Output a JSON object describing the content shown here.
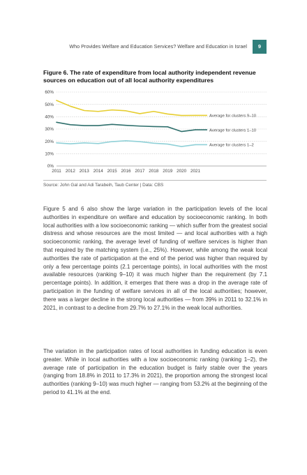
{
  "header": {
    "running_head": "Who Provides Welfare and Education Services? Welfare and Education in Israel",
    "page_number": "9",
    "badge_color": "#2f7f7b"
  },
  "figure": {
    "title": "Figure 6. The rate of expenditure from local authority independent revenue sources on education out of all local authority expenditures",
    "source": "Source: John Gal and Adi Tarabeih, Taub Center | Data: CBS"
  },
  "chart_data": {
    "type": "line",
    "title": "Figure 6. The rate of expenditure from local authority independent revenue sources on education out of all local authority expenditures",
    "xlabel": "",
    "ylabel": "",
    "x": [
      "2011",
      "2012",
      "2013",
      "2014",
      "2015",
      "2016",
      "2017",
      "2018",
      "2019",
      "2020",
      "2021"
    ],
    "ylim": [
      0,
      60
    ],
    "yticks": [
      "0%",
      "10%",
      "20%",
      "30%",
      "40%",
      "50%",
      "60%"
    ],
    "grid": "horizontal dotted",
    "legend_placement": "right, end of lines",
    "series": [
      {
        "name": "Average for clusters 9–10",
        "color": "#e6cd2e",
        "values": [
          53.2,
          48.5,
          45.0,
          44.3,
          45.5,
          44.8,
          42.5,
          44.3,
          42.2,
          41.0,
          41.1
        ]
      },
      {
        "name": "Average for clusters 1–10",
        "color": "#2e6f6c",
        "values": [
          35.5,
          33.5,
          32.8,
          32.8,
          33.8,
          33.0,
          32.4,
          32.0,
          31.8,
          28.0,
          29.4
        ]
      },
      {
        "name": "Average for clusters 1–2",
        "color": "#8fd0d7",
        "values": [
          18.8,
          18.0,
          18.8,
          18.2,
          19.8,
          20.5,
          19.8,
          18.5,
          17.8,
          15.8,
          17.3
        ]
      }
    ]
  },
  "body": {
    "para1": "Figure 5 and 6 also show the large variation in the participation levels of the local authorities in expenditure on welfare and education by socioeconomic ranking. In both local authorities with a low socioeconomic ranking — which suffer from the greatest social distress and whose resources are the most limited — and local authorities with a high socioeconomic ranking, the average level of funding of welfare services is higher than that required by the matching system (i.e., 25%). However, while among the weak local authorities the rate of participation at the end of the period was higher than required by only a few percentage points (2.1 percentage points), in local authorities with the most available resources (ranking 9–10) it was much higher than the requirement (by 7.1 percentage points). In addition, it emerges that there was a drop in the average rate of participation in the funding of welfare services in all of the local authorities; however, there was a larger decline in the strong local authorities — from 39% in 2011 to 32.1% in 2021, in contrast to a decline from 29.7% to 27.1% in the weak local authorities.",
    "para2": "The variation in the participation rates of local authorities in funding education is even greater. While in local authorities with a low socioeconomic ranking (ranking 1–2), the average rate of participation in the education budget is fairly stable over the years (ranging from 18.8% in 2011 to 17.3% in 2021), the proportion among the strongest local authorities (ranking 9–10) was much higher — ranging from 53.2% at the beginning of the period to 41.1% at the end."
  }
}
